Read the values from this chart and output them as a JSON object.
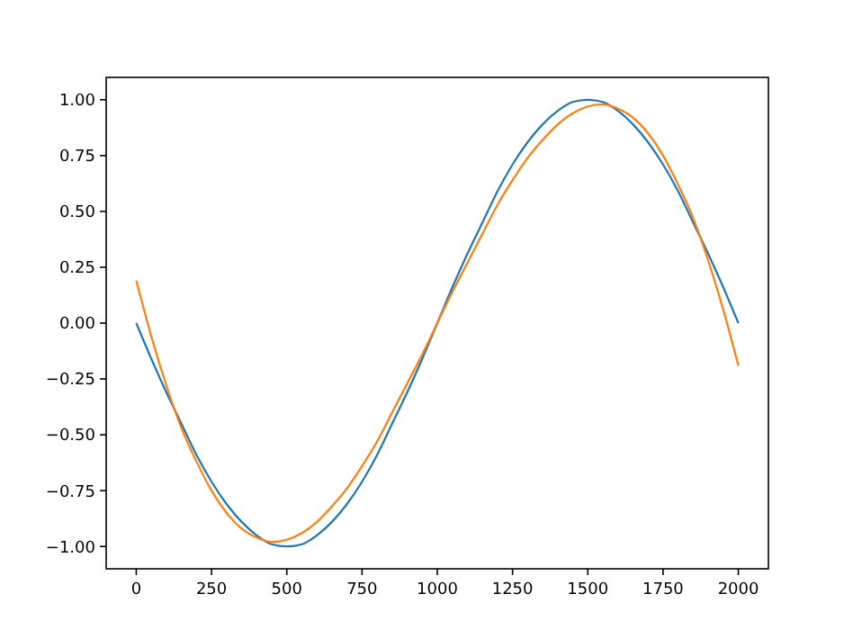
{
  "chart_data": {
    "type": "line",
    "x": [
      0,
      50,
      100,
      150,
      200,
      250,
      300,
      350,
      400,
      450,
      500,
      550,
      600,
      650,
      700,
      750,
      800,
      850,
      900,
      950,
      1000,
      1050,
      1100,
      1150,
      1200,
      1250,
      1300,
      1350,
      1400,
      1450,
      1500,
      1550,
      1600,
      1650,
      1700,
      1750,
      1800,
      1850,
      1900,
      1950,
      2000
    ],
    "series": [
      {
        "color": "#1f77b4",
        "values": [
          0,
          -0.16,
          -0.31,
          -0.45,
          -0.59,
          -0.71,
          -0.81,
          -0.89,
          -0.95,
          -0.99,
          -1,
          -0.99,
          -0.95,
          -0.89,
          -0.81,
          -0.71,
          -0.59,
          -0.45,
          -0.31,
          -0.16,
          0,
          0.16,
          0.31,
          0.45,
          0.59,
          0.71,
          0.81,
          0.89,
          0.95,
          0.99,
          1,
          0.99,
          0.95,
          0.89,
          0.81,
          0.71,
          0.59,
          0.45,
          0.31,
          0.16,
          0
        ]
      },
      {
        "color": "#ff7f0e",
        "values": [
          0.19,
          -0.06,
          -0.28,
          -0.47,
          -0.62,
          -0.75,
          -0.85,
          -0.92,
          -0.96,
          -0.98,
          -0.97,
          -0.94,
          -0.89,
          -0.82,
          -0.74,
          -0.64,
          -0.53,
          -0.4,
          -0.27,
          -0.14,
          0,
          0.14,
          0.27,
          0.4,
          0.53,
          0.64,
          0.74,
          0.82,
          0.89,
          0.94,
          0.97,
          0.98,
          0.96,
          0.92,
          0.85,
          0.75,
          0.62,
          0.47,
          0.28,
          0.06,
          -0.19
        ]
      }
    ],
    "xlim": [
      -100,
      2100
    ],
    "ylim": [
      -1.1,
      1.1
    ],
    "xticks": [
      0,
      250,
      500,
      750,
      1000,
      1250,
      1500,
      1750,
      2000
    ],
    "yticks": [
      {
        "value": -1,
        "label": "−1.00"
      },
      {
        "value": -0.75,
        "label": "−0.75"
      },
      {
        "value": -0.5,
        "label": "−0.50"
      },
      {
        "value": -0.25,
        "label": "−0.25"
      },
      {
        "value": 0,
        "label": "0.00"
      },
      {
        "value": 0.25,
        "label": "0.25"
      },
      {
        "value": 0.5,
        "label": "0.50"
      },
      {
        "value": 0.75,
        "label": "0.75"
      },
      {
        "value": 1,
        "label": "1.00"
      }
    ],
    "grid": false,
    "marker": "none",
    "line_style": "solid"
  }
}
